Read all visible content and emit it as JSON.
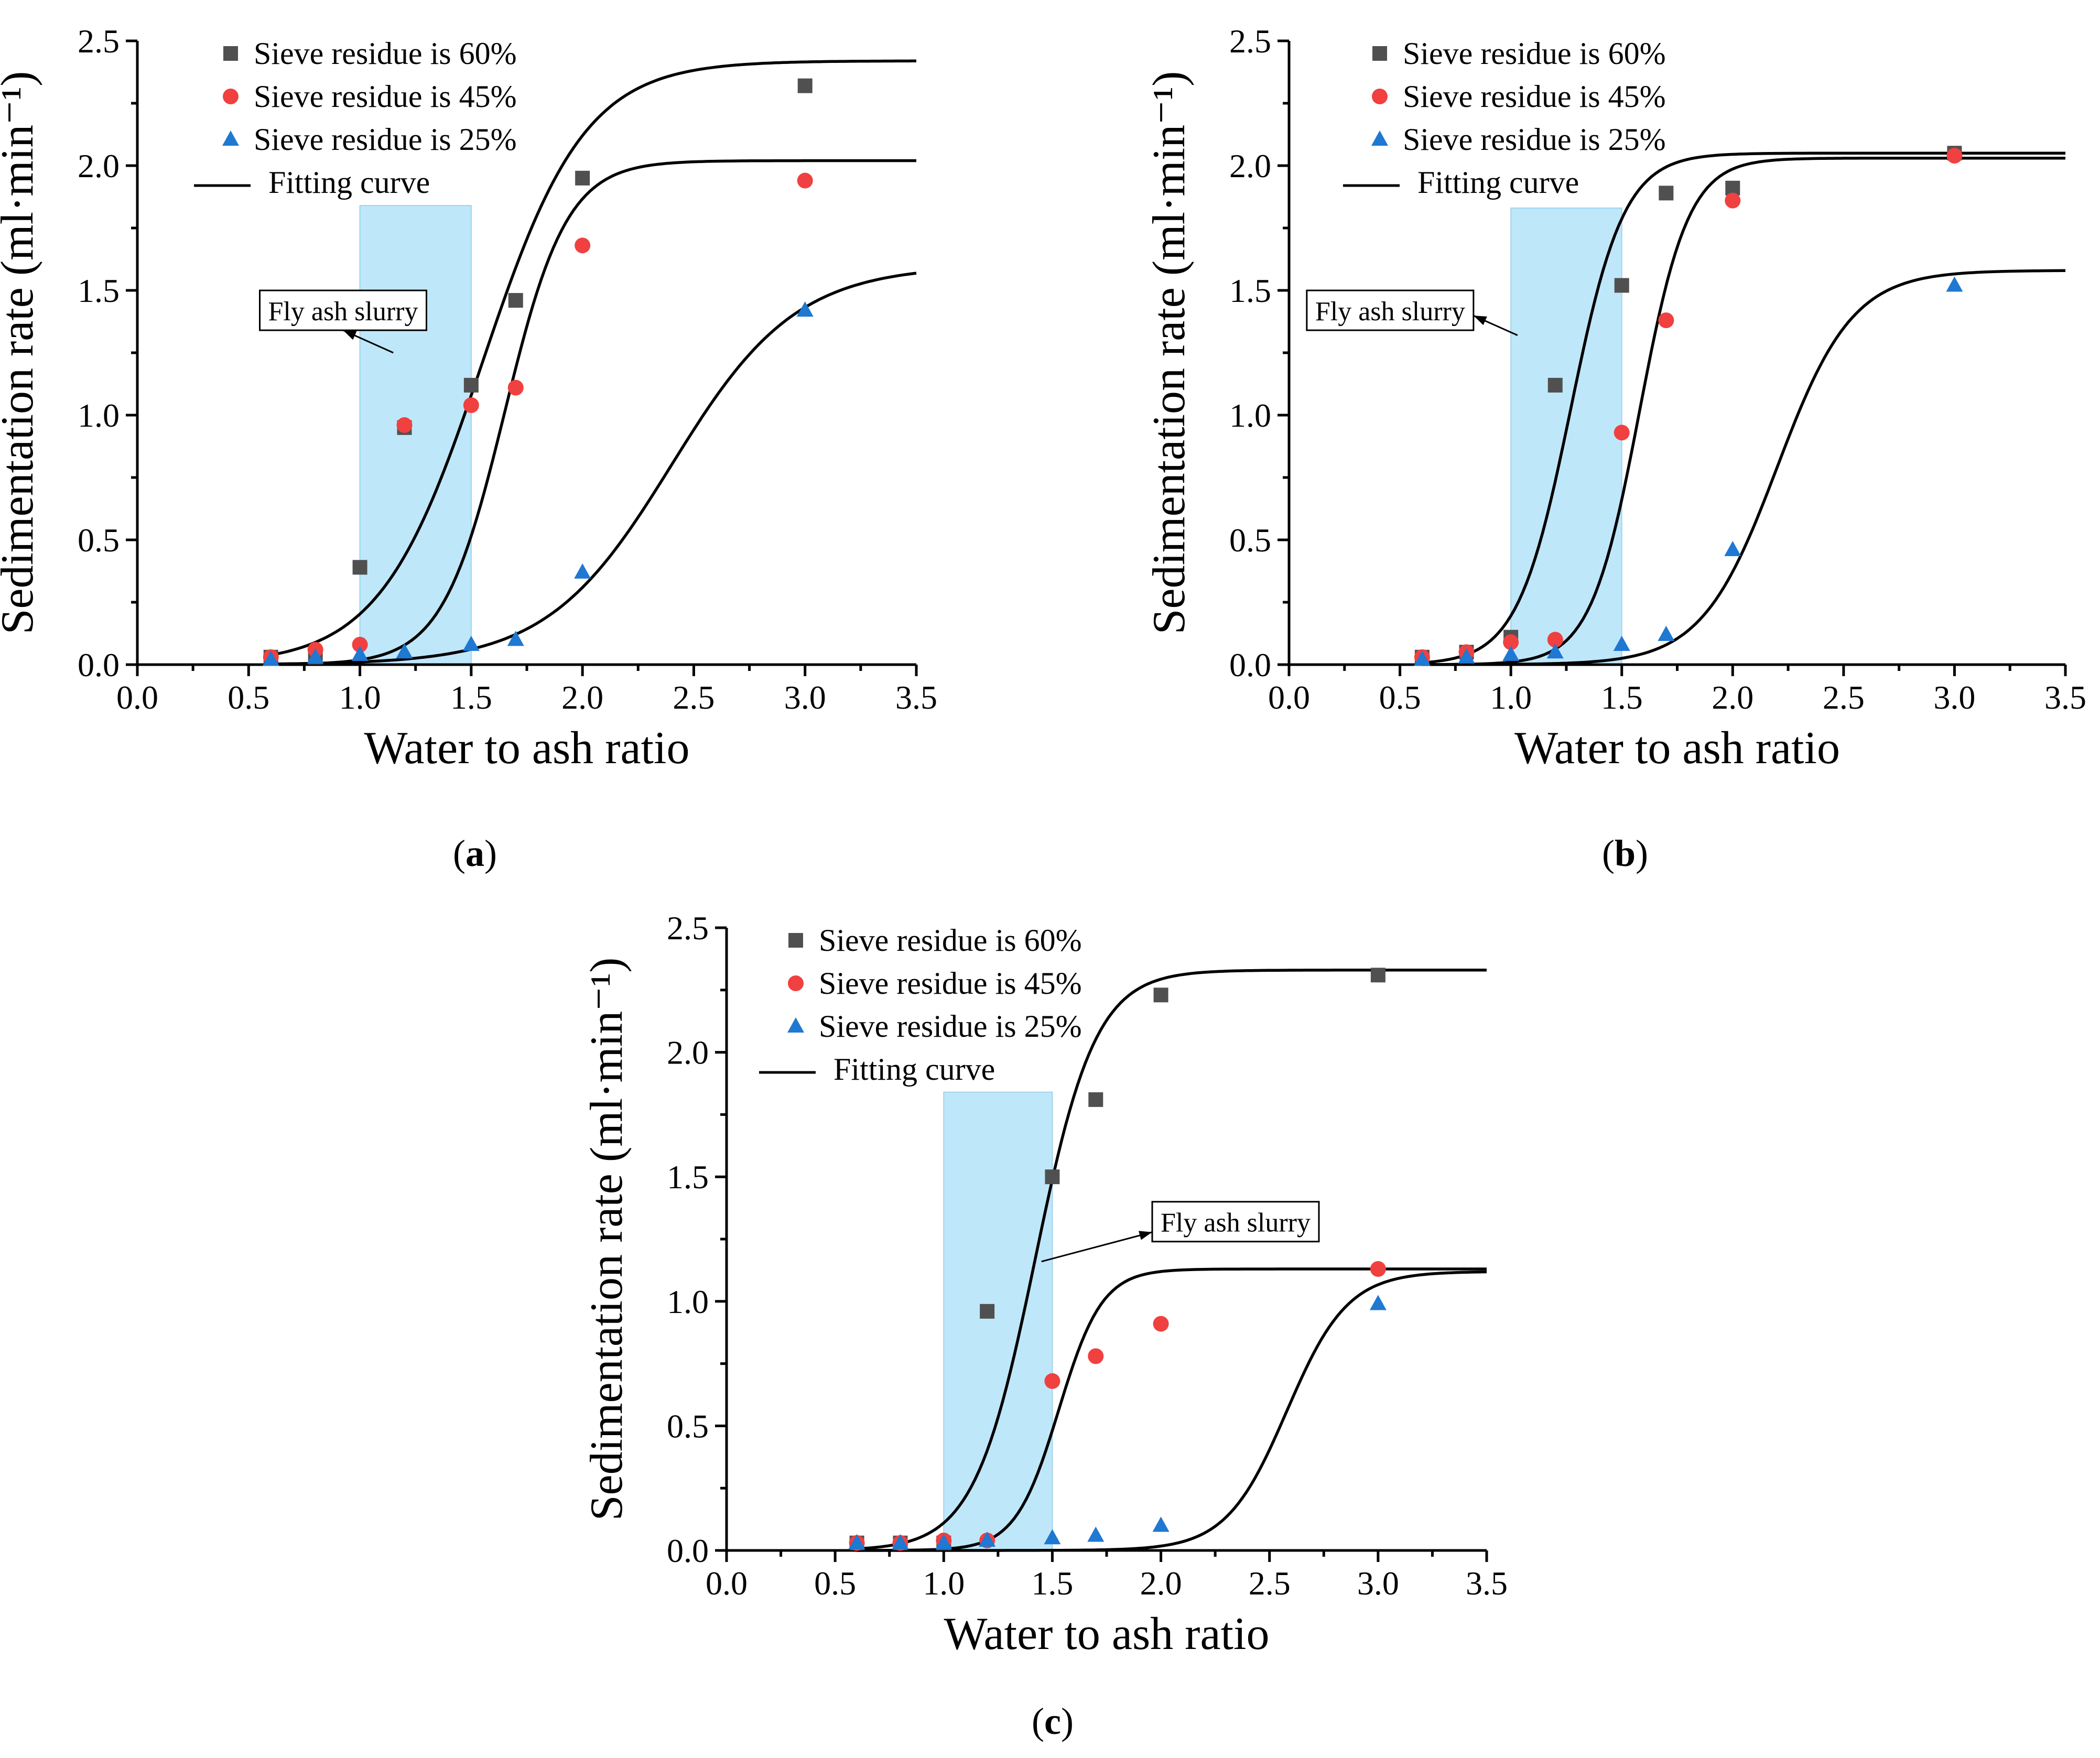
{
  "figure": {
    "colors": {
      "sieve_60": "#505050",
      "sieve_45": "#f04040",
      "sieve_25": "#1f78d2",
      "fit": "#000000",
      "band": "#bfe7fa"
    },
    "captions": [
      "(a)",
      "(b)",
      "(c)"
    ]
  },
  "chart_data": [
    {
      "type": "scatter",
      "panel": "a",
      "xlabel": "Water to ash ratio",
      "ylabel": "Sedimentation rate (ml·min⁻¹)",
      "xlim": [
        0,
        3.5
      ],
      "ylim": [
        0,
        2.5
      ],
      "xticks": [
        "0.0",
        "0.5",
        "1.0",
        "1.5",
        "2.0",
        "2.5",
        "3.0",
        "3.5"
      ],
      "yticks": [
        "0.0",
        "0.5",
        "1.0",
        "1.5",
        "2.0",
        "2.5"
      ],
      "legend": [
        "Sieve residue is 60%",
        "Sieve residue is 45%",
        "Sieve residue is 25%",
        "Fitting curve"
      ],
      "shaded_region": {
        "x": [
          1.0,
          1.5
        ],
        "y": [
          0,
          1.84
        ]
      },
      "annotation": {
        "text": "Fly ash slurry",
        "x": 0.55,
        "y": 1.42,
        "arrow_to": [
          1.15,
          1.25
        ]
      },
      "series": [
        {
          "name": "Sieve residue is 60%",
          "marker": "square",
          "x": [
            0.6,
            0.8,
            1.0,
            1.2,
            1.5,
            1.7,
            2.0,
            3.0
          ],
          "y": [
            0.03,
            0.03,
            0.39,
            0.95,
            1.12,
            1.46,
            1.95,
            2.32
          ],
          "fit": {
            "A1": 0.0,
            "A2": 2.42,
            "x0": 1.55,
            "dx": 0.23,
            "xmin": 0.6,
            "xmax": 3.5
          }
        },
        {
          "name": "Sieve residue is 45%",
          "marker": "circle",
          "x": [
            0.6,
            0.8,
            1.0,
            1.2,
            1.5,
            1.7,
            2.0,
            3.0
          ],
          "y": [
            0.03,
            0.06,
            0.08,
            0.96,
            1.04,
            1.11,
            1.68,
            1.94
          ],
          "fit": {
            "A1": 0.0,
            "A2": 2.02,
            "x0": 1.65,
            "dx": 0.14,
            "xmin": 0.6,
            "xmax": 3.5
          }
        },
        {
          "name": "Sieve residue is 25%",
          "marker": "triangle",
          "x": [
            0.6,
            0.8,
            1.0,
            1.2,
            1.5,
            1.7,
            2.0,
            3.0
          ],
          "y": [
            0.02,
            0.03,
            0.04,
            0.05,
            0.08,
            0.1,
            0.37,
            1.42
          ],
          "fit": {
            "A1": 0.0,
            "A2": 1.6,
            "x0": 2.4,
            "dx": 0.28,
            "xmin": 0.6,
            "xmax": 3.5
          }
        }
      ]
    },
    {
      "type": "scatter",
      "panel": "b",
      "xlabel": "Water to ash ratio",
      "ylabel": "Sedimentation rate (ml·min⁻¹)",
      "xlim": [
        0,
        3.5
      ],
      "ylim": [
        0,
        2.5
      ],
      "xticks": [
        "0.0",
        "0.5",
        "1.0",
        "1.5",
        "2.0",
        "2.5",
        "3.0",
        "3.5"
      ],
      "yticks": [
        "0.0",
        "0.5",
        "1.0",
        "1.5",
        "2.0",
        "2.5"
      ],
      "legend": [
        "Sieve residue is 60%",
        "Sieve residue is 45%",
        "Sieve residue is 25%",
        "Fitting curve"
      ],
      "shaded_region": {
        "x": [
          1.0,
          1.5
        ],
        "y": [
          0,
          1.83
        ]
      },
      "annotation": {
        "text": "Fly ash slurry",
        "x": 0.08,
        "y": 1.42,
        "arrow_to": [
          1.03,
          1.32
        ]
      },
      "series": [
        {
          "name": "Sieve residue is 60%",
          "marker": "square",
          "x": [
            0.6,
            0.8,
            1.0,
            1.2,
            1.5,
            1.7,
            2.0,
            3.0
          ],
          "y": [
            0.03,
            0.05,
            0.11,
            1.12,
            1.52,
            1.89,
            1.91,
            2.05
          ],
          "fit": {
            "A1": 0.0,
            "A2": 2.05,
            "x0": 1.27,
            "dx": 0.12,
            "xmin": 0.6,
            "xmax": 3.5
          }
        },
        {
          "name": "Sieve residue is 45%",
          "marker": "circle",
          "x": [
            0.6,
            0.8,
            1.0,
            1.2,
            1.5,
            1.7,
            2.0,
            3.0
          ],
          "y": [
            0.03,
            0.05,
            0.09,
            0.1,
            0.93,
            1.38,
            1.86,
            2.04
          ],
          "fit": {
            "A1": 0.0,
            "A2": 2.03,
            "x0": 1.58,
            "dx": 0.11,
            "xmin": 0.6,
            "xmax": 3.5
          }
        },
        {
          "name": "Sieve residue is 25%",
          "marker": "triangle",
          "x": [
            0.6,
            0.8,
            1.0,
            1.2,
            1.5,
            1.7,
            2.0,
            3.0
          ],
          "y": [
            0.02,
            0.03,
            0.04,
            0.05,
            0.08,
            0.12,
            0.46,
            1.52
          ],
          "fit": {
            "A1": 0.0,
            "A2": 1.58,
            "x0": 2.2,
            "dx": 0.17,
            "xmin": 0.6,
            "xmax": 3.5
          }
        }
      ]
    },
    {
      "type": "scatter",
      "panel": "c",
      "xlabel": "Water to ash ratio",
      "ylabel": "Sedimentation rate (ml·min⁻¹)",
      "xlim": [
        0,
        3.5
      ],
      "ylim": [
        0,
        2.5
      ],
      "xticks": [
        "0.0",
        "0.5",
        "1.0",
        "1.5",
        "2.0",
        "2.5",
        "3.0",
        "3.5"
      ],
      "yticks": [
        "0.0",
        "0.5",
        "1.0",
        "1.5",
        "2.0",
        "2.5"
      ],
      "legend": [
        "Sieve residue is 60%",
        "Sieve residue is 45%",
        "Sieve residue is 25%",
        "Fitting curve"
      ],
      "shaded_region": {
        "x": [
          1.0,
          1.5
        ],
        "y": [
          0,
          1.84
        ]
      },
      "annotation": {
        "text": "Fly ash slurry",
        "x": 1.96,
        "y": 1.32,
        "arrow_to": [
          1.45,
          1.16
        ]
      },
      "series": [
        {
          "name": "Sieve residue is 60%",
          "marker": "square",
          "x": [
            0.6,
            0.8,
            1.0,
            1.2,
            1.5,
            1.7,
            2.0,
            3.0
          ],
          "y": [
            0.03,
            0.03,
            0.03,
            0.96,
            1.5,
            1.81,
            2.23,
            2.31
          ],
          "fit": {
            "A1": 0.0,
            "A2": 2.33,
            "x0": 1.42,
            "dx": 0.14,
            "xmin": 0.6,
            "xmax": 3.5
          }
        },
        {
          "name": "Sieve residue is 45%",
          "marker": "circle",
          "x": [
            0.6,
            0.8,
            1.0,
            1.2,
            1.5,
            1.7,
            2.0,
            3.0
          ],
          "y": [
            0.03,
            0.03,
            0.04,
            0.04,
            0.68,
            0.78,
            0.91,
            1.13
          ],
          "fit": {
            "A1": 0.0,
            "A2": 1.13,
            "x0": 1.53,
            "dx": 0.1,
            "xmin": 0.6,
            "xmax": 3.5
          }
        },
        {
          "name": "Sieve residue is 25%",
          "marker": "triangle",
          "x": [
            0.6,
            0.8,
            1.0,
            1.2,
            1.5,
            1.7,
            2.0,
            3.0
          ],
          "y": [
            0.03,
            0.03,
            0.03,
            0.04,
            0.05,
            0.06,
            0.1,
            0.99
          ],
          "fit": {
            "A1": 0.0,
            "A2": 1.12,
            "x0": 2.58,
            "dx": 0.14,
            "xmin": 0.6,
            "xmax": 3.5
          }
        }
      ]
    }
  ]
}
